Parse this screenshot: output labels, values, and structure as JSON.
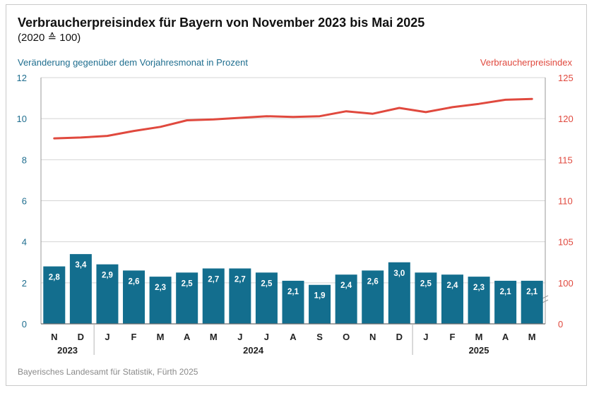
{
  "chart_data": {
    "type": "bar+line",
    "title": "Verbraucherpreisindex für Bayern von November 2023 bis Mai 2025",
    "subtitle": "(2020 ≙ 100)",
    "left_axis_label": "Veränderung gegenüber dem Vorjahresmonat in Prozent",
    "right_axis_label": "Verbraucherpreisindex",
    "categories": [
      "N",
      "D",
      "J",
      "F",
      "M",
      "A",
      "M",
      "J",
      "J",
      "A",
      "S",
      "O",
      "N",
      "D",
      "J",
      "F",
      "M",
      "A",
      "M"
    ],
    "year_labels": [
      "2023",
      "2024",
      "2025"
    ],
    "bar_series": {
      "values": [
        2.8,
        3.4,
        2.9,
        2.6,
        2.3,
        2.5,
        2.7,
        2.7,
        2.5,
        2.1,
        1.9,
        2.4,
        2.6,
        3.0,
        2.5,
        2.4,
        2.3,
        2.1,
        2.1
      ],
      "labels": [
        "2,8",
        "3,4",
        "2,9",
        "2,6",
        "2,3",
        "2,5",
        "2,7",
        "2,7",
        "2,5",
        "2,1",
        "1,9",
        "2,4",
        "2,6",
        "3,0",
        "2,5",
        "2,4",
        "2,3",
        "2,1",
        "2,1"
      ],
      "color": "#136e8e"
    },
    "line_series": {
      "values": [
        117.6,
        117.7,
        117.9,
        118.5,
        119.0,
        119.8,
        119.9,
        120.1,
        120.3,
        120.2,
        120.3,
        120.9,
        120.6,
        121.3,
        120.8,
        121.4,
        121.8,
        122.3,
        122.4
      ],
      "color": "#e0493e"
    },
    "left_ticks": [
      "0",
      "2",
      "4",
      "6",
      "8",
      "10",
      "12"
    ],
    "left_ylim": [
      0,
      12
    ],
    "right_ticks": [
      "0",
      "100",
      "105",
      "110",
      "115",
      "120",
      "125"
    ],
    "right_ylim": [
      95,
      125
    ],
    "grid": true
  },
  "source": "Bayerisches Landesamt für Statistik, Fürth 2025"
}
